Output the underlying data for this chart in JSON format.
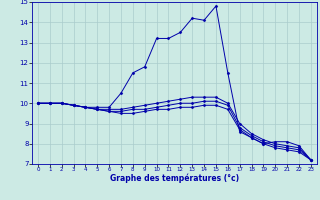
{
  "xlabel": "Graphe des températures (°c)",
  "background_color": "#cceae4",
  "line_color": "#0000aa",
  "grid_color": "#aacccc",
  "xlim": [
    -0.5,
    23.5
  ],
  "ylim": [
    7,
    15
  ],
  "xticks": [
    0,
    1,
    2,
    3,
    4,
    5,
    6,
    7,
    8,
    9,
    10,
    11,
    12,
    13,
    14,
    15,
    16,
    17,
    18,
    19,
    20,
    21,
    22,
    23
  ],
  "yticks": [
    7,
    8,
    9,
    10,
    11,
    12,
    13,
    14,
    15
  ],
  "series": [
    {
      "x": [
        0,
        1,
        2,
        3,
        4,
        5,
        6,
        7,
        8,
        9,
        10,
        11,
        12,
        13,
        14,
        15,
        16,
        17,
        18,
        19,
        20,
        21,
        22,
        23
      ],
      "y": [
        10.0,
        10.0,
        10.0,
        9.9,
        9.8,
        9.8,
        9.8,
        10.5,
        11.5,
        11.8,
        13.2,
        13.2,
        13.5,
        14.2,
        14.1,
        14.8,
        11.5,
        8.6,
        8.3,
        8.0,
        8.1,
        8.1,
        7.9,
        7.2
      ]
    },
    {
      "x": [
        0,
        1,
        2,
        3,
        4,
        5,
        6,
        7,
        8,
        9,
        10,
        11,
        12,
        13,
        14,
        15,
        16,
        17,
        18,
        19,
        20,
        21,
        22,
        23
      ],
      "y": [
        10.0,
        10.0,
        10.0,
        9.9,
        9.8,
        9.7,
        9.7,
        9.7,
        9.8,
        9.9,
        10.0,
        10.1,
        10.2,
        10.3,
        10.3,
        10.3,
        10.0,
        9.0,
        8.5,
        8.2,
        8.0,
        7.9,
        7.8,
        7.2
      ]
    },
    {
      "x": [
        0,
        1,
        2,
        3,
        4,
        5,
        6,
        7,
        8,
        9,
        10,
        11,
        12,
        13,
        14,
        15,
        16,
        17,
        18,
        19,
        20,
        21,
        22,
        23
      ],
      "y": [
        10.0,
        10.0,
        10.0,
        9.9,
        9.8,
        9.7,
        9.6,
        9.6,
        9.7,
        9.7,
        9.8,
        9.9,
        10.0,
        10.0,
        10.1,
        10.1,
        9.9,
        8.8,
        8.4,
        8.1,
        7.9,
        7.8,
        7.7,
        7.2
      ]
    },
    {
      "x": [
        0,
        1,
        2,
        3,
        4,
        5,
        6,
        7,
        8,
        9,
        10,
        11,
        12,
        13,
        14,
        15,
        16,
        17,
        18,
        19,
        20,
        21,
        22,
        23
      ],
      "y": [
        10.0,
        10.0,
        10.0,
        9.9,
        9.8,
        9.7,
        9.6,
        9.5,
        9.5,
        9.6,
        9.7,
        9.7,
        9.8,
        9.8,
        9.9,
        9.9,
        9.7,
        8.7,
        8.3,
        8.0,
        7.8,
        7.7,
        7.6,
        7.2
      ]
    }
  ]
}
